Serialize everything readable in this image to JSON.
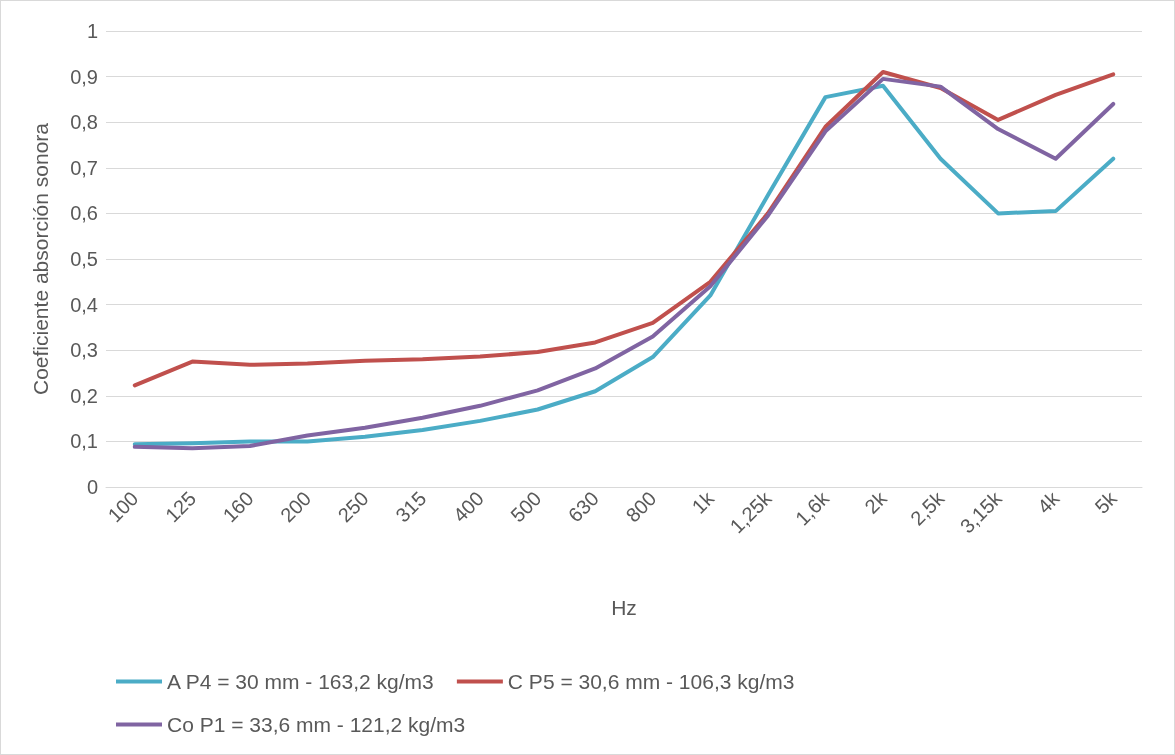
{
  "chart_data": {
    "type": "line",
    "xlabel": "Hz",
    "ylabel": "Coeficiente absorción sonora",
    "categories": [
      "100",
      "125",
      "160",
      "200",
      "250",
      "315",
      "400",
      "500",
      "630",
      "800",
      "1k",
      "1,25k",
      "1,6k",
      "2k",
      "2,5k",
      "3,15k",
      "4k",
      "5k"
    ],
    "series": [
      {
        "name": "A P4 = 30 mm - 163,2 kg/m3",
        "color": "#4bacc6",
        "values": [
          0.094,
          0.096,
          0.1,
          0.1,
          0.11,
          0.125,
          0.145,
          0.17,
          0.21,
          0.285,
          0.42,
          0.64,
          0.855,
          0.88,
          0.72,
          0.6,
          0.605,
          0.72
        ]
      },
      {
        "name": "C P5 = 30,6 mm - 106,3 kg/m3",
        "color": "#c0504d",
        "values": [
          0.223,
          0.275,
          0.268,
          0.271,
          0.277,
          0.28,
          0.286,
          0.296,
          0.317,
          0.36,
          0.45,
          0.6,
          0.79,
          0.91,
          0.875,
          0.805,
          0.86,
          0.905
        ]
      },
      {
        "name": "Co P1 = 33,6 mm - 121,2 kg/m3",
        "color": "#8064a2",
        "values": [
          0.088,
          0.085,
          0.09,
          0.113,
          0.13,
          0.152,
          0.178,
          0.212,
          0.26,
          0.33,
          0.44,
          0.595,
          0.78,
          0.895,
          0.878,
          0.785,
          0.72,
          0.84
        ]
      }
    ],
    "ylim": [
      0,
      1
    ],
    "yticks": [
      0,
      {
        "value": 0.1,
        "label": "0,1"
      },
      {
        "value": 0.2,
        "label": "0,2"
      },
      {
        "value": 0.3,
        "label": "0,3"
      },
      {
        "value": 0.4,
        "label": "0,4"
      },
      {
        "value": 0.5,
        "label": "0,5"
      },
      {
        "value": 0.6,
        "label": "0,6"
      },
      {
        "value": 0.7,
        "label": "0,7"
      },
      {
        "value": 0.8,
        "label": "0,8"
      },
      {
        "value": 0.9,
        "label": "0,9"
      },
      1
    ],
    "grid": "y",
    "legend": "bottom",
    "marker": "none",
    "line_style": "solid"
  }
}
